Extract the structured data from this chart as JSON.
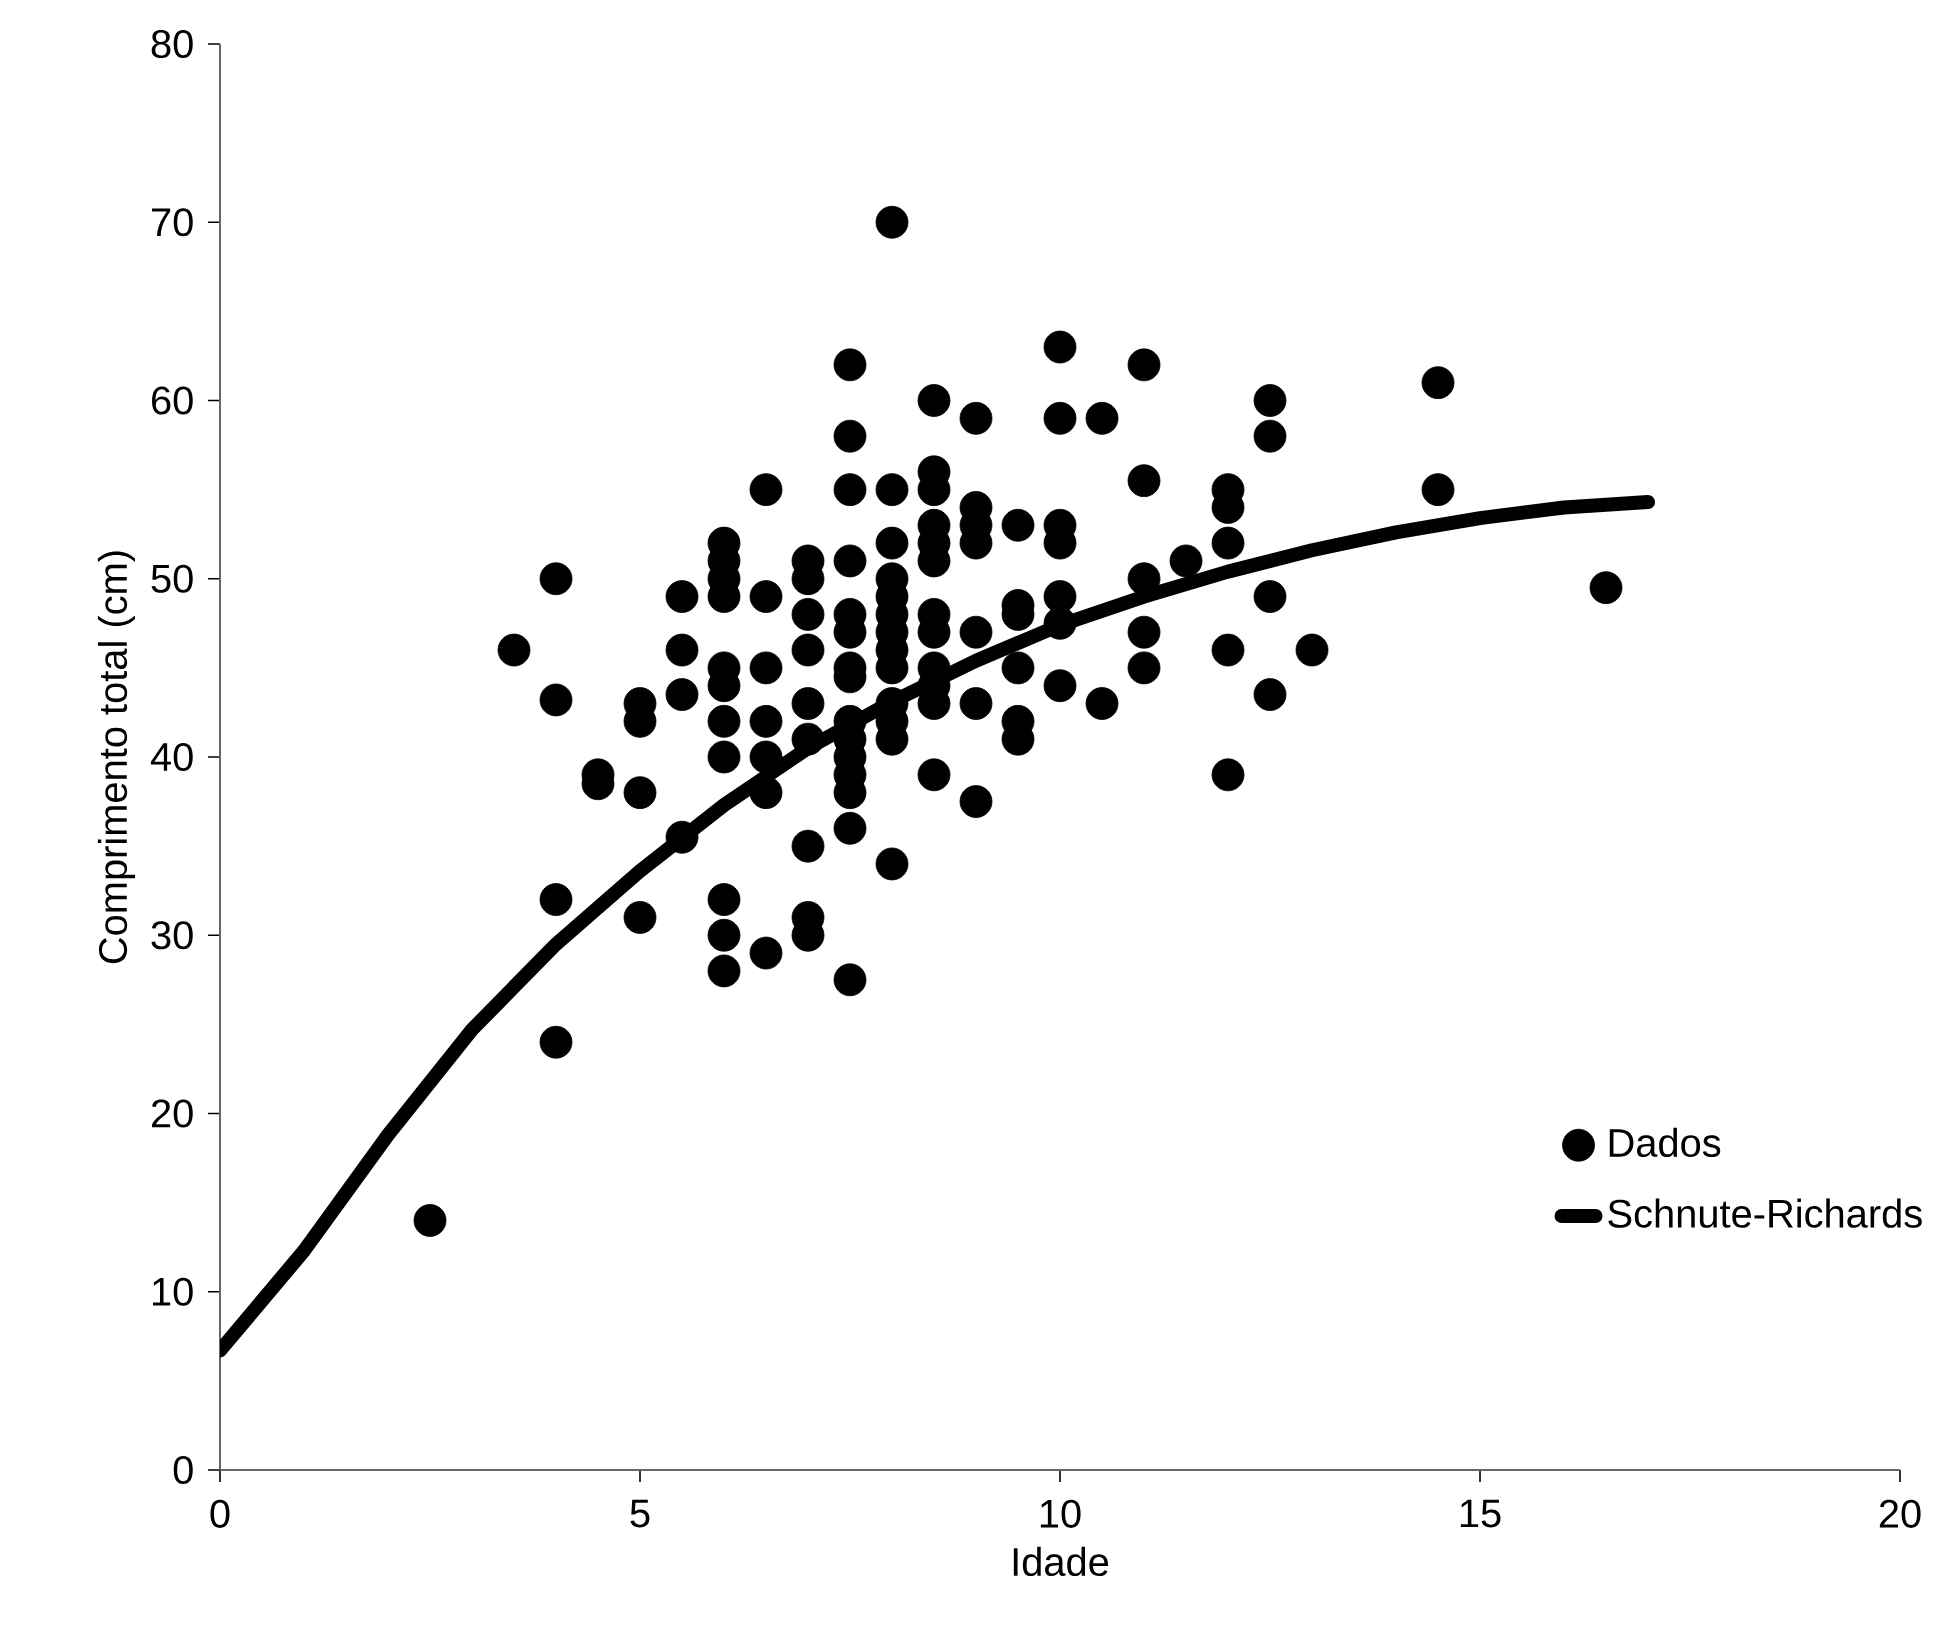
{
  "chart_data": {
    "type": "scatter",
    "xlabel": "Idade",
    "ylabel": "Comprimento total (cm)",
    "xlim": [
      0,
      20
    ],
    "ylim": [
      0,
      80
    ],
    "xticks": [
      0,
      5,
      10,
      15,
      20
    ],
    "yticks": [
      0,
      10,
      20,
      30,
      40,
      50,
      60,
      70,
      80
    ],
    "grid": false,
    "legend": "bottom right",
    "marker": "circle",
    "series": [
      {
        "name": "Dados",
        "color": "#000000",
        "x": [
          2.5,
          3.5,
          4,
          4,
          4,
          4,
          4.5,
          4.5,
          5,
          5,
          5,
          5,
          5.5,
          5.5,
          5.5,
          5.5,
          6,
          6,
          6,
          6,
          6,
          6,
          6,
          6,
          6,
          6,
          6,
          6.5,
          6.5,
          6.5,
          6.5,
          6.5,
          6.5,
          6.5,
          7,
          7,
          7,
          7,
          7,
          7,
          7,
          7,
          7,
          7.5,
          7.5,
          7.5,
          7.5,
          7.5,
          7.5,
          7.5,
          7.5,
          7.5,
          7.5,
          7.5,
          7.5,
          7.5,
          7.5,
          7.5,
          8,
          8,
          8,
          8,
          8,
          8,
          8,
          8,
          8,
          8,
          8,
          8,
          8,
          8.5,
          8.5,
          8.5,
          8.5,
          8.5,
          8.5,
          8.5,
          8.5,
          8.5,
          8.5,
          8.5,
          8.5,
          9,
          9,
          9,
          9,
          9,
          9,
          9,
          9.5,
          9.5,
          9.5,
          9.5,
          9.5,
          9.5,
          10,
          10,
          10,
          10,
          10,
          10,
          10,
          10.5,
          10.5,
          11,
          11,
          11,
          11,
          11,
          11.5,
          12,
          12,
          12,
          12,
          12,
          12.5,
          12.5,
          12.5,
          12.5,
          13,
          14.5,
          14.5,
          16.5
        ],
        "values": [
          14,
          46,
          50,
          43.2,
          32,
          24,
          39,
          38.5,
          43,
          42,
          38,
          31,
          49,
          46,
          43.5,
          35.5,
          52,
          51,
          50,
          49,
          45,
          44,
          42,
          40,
          32,
          30,
          28,
          55,
          49,
          45,
          42,
          40,
          38,
          29,
          51,
          50,
          48,
          46,
          43,
          41,
          35,
          31,
          30,
          62,
          58,
          55,
          51,
          48,
          47,
          45,
          44.5,
          42,
          41,
          40,
          39,
          38,
          36,
          27.5,
          70,
          55,
          52,
          50,
          49,
          48,
          47,
          46,
          45,
          43,
          42,
          41,
          34,
          60,
          56,
          55,
          53,
          52,
          51,
          48,
          47,
          45,
          44,
          43,
          39,
          59,
          54,
          53,
          52,
          47,
          43,
          37.5,
          53,
          48.5,
          48,
          45,
          42,
          41,
          63,
          59,
          53,
          52,
          49,
          47.5,
          44,
          59,
          43,
          62,
          55.5,
          50,
          47,
          45,
          51,
          55,
          54,
          52,
          46,
          39,
          60,
          58,
          49,
          43.5,
          46,
          61,
          55,
          49.5
        ]
      },
      {
        "type": "line",
        "name": "Schnute-Richards",
        "color": "#000000",
        "marker": "none",
        "line_style": "solid",
        "x": [
          0,
          1,
          2,
          3,
          4,
          5,
          6,
          7,
          8,
          9,
          10,
          11,
          12,
          13,
          14,
          15,
          16,
          17
        ],
        "values": [
          6.7,
          12.3,
          18.8,
          24.7,
          29.5,
          33.6,
          37.3,
          40.5,
          43.1,
          45.4,
          47.4,
          49.0,
          50.4,
          51.6,
          52.6,
          53.4,
          54.0,
          54.3
        ]
      }
    ]
  }
}
